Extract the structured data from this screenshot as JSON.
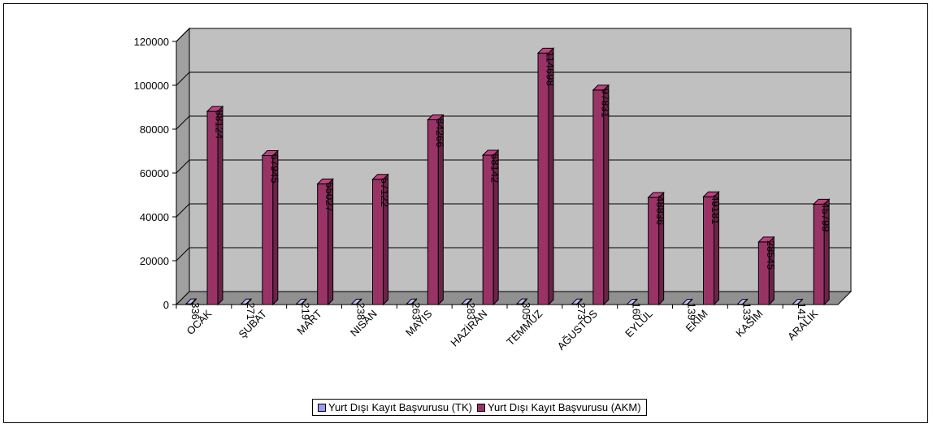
{
  "chart_data": {
    "type": "bar",
    "title": "",
    "xlabel": "",
    "ylabel": "",
    "categories": [
      "OCAK",
      "ŞUBAT",
      "MART",
      "NISAN",
      "MAYIS",
      "HAZİRAN",
      "TEMMUZ",
      "AĞUSTOS",
      "EYLÜL",
      "EKİM",
      "KASIM",
      "ARALIK"
    ],
    "series": [
      {
        "name": "Yurt Dışı Kayıt Başvurusu (TK)",
        "color": "#9999ff",
        "values": [
          336,
          271,
          219,
          238,
          263,
          283,
          305,
          273,
          160,
          139,
          133,
          141
        ],
        "labels": [
          "336",
          "271",
          "219",
          "238",
          "263",
          "283",
          "305",
          "273",
          "160",
          "139",
          "133",
          "141"
        ]
      },
      {
        "name": "Yurt Dışı Kayıt Başvurusu (AKM)",
        "color": "#993366",
        "values": [
          88124,
          67945,
          55027,
          57122,
          84266,
          68142,
          114698,
          97831,
          48836,
          49181,
          28545,
          45799
        ],
        "labels": [
          "88124",
          "67945",
          "55027",
          "57122",
          "84266",
          "68142",
          "114698",
          "97831",
          "48836",
          "49181",
          "28545",
          "45799"
        ]
      }
    ],
    "ylim": [
      0,
      120000
    ],
    "yticks": [
      0,
      20000,
      40000,
      60000,
      80000,
      100000,
      120000
    ],
    "ytick_labels": [
      "0",
      "20000",
      "40000",
      "60000",
      "80000",
      "100000",
      "120000"
    ],
    "grid": true,
    "legend_position": "bottom",
    "plot_background": "#c0c0c0"
  }
}
